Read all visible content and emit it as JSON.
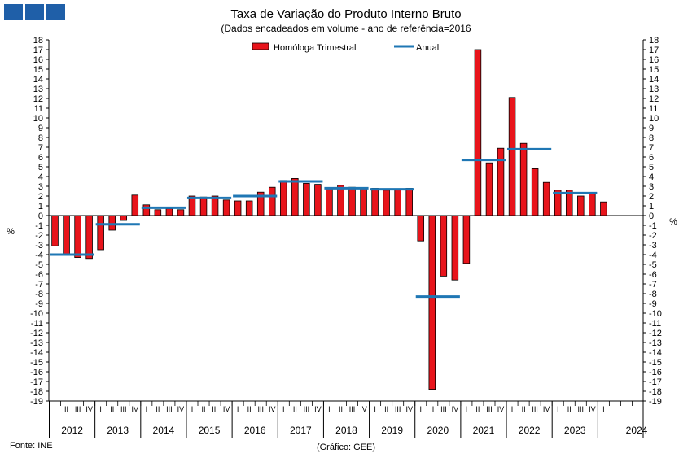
{
  "header": {
    "title": "Taxa de Variação do Produto Interno Bruto",
    "subtitle": "(Dados encadeados em volume  - ano de referência=2016"
  },
  "footer": {
    "source": "Fonte: INE",
    "credit": "(Gráfico: GEE)"
  },
  "colors": {
    "bar_fill": "#e8141b",
    "bar_stroke": "#000000",
    "annual_line": "#1f77b4",
    "logo": "#1f5fa8"
  },
  "chart_data": {
    "type": "bar",
    "ylabel_left": "%",
    "ylabel_right": "%",
    "ylim": [
      -19,
      18
    ],
    "y_ticks": [
      18,
      17,
      16,
      15,
      14,
      13,
      12,
      11,
      10,
      9,
      8,
      7,
      6,
      5,
      4,
      3,
      2,
      1,
      0,
      -1,
      -2,
      -3,
      -4,
      -5,
      -6,
      -7,
      -8,
      -9,
      -10,
      -11,
      -12,
      -13,
      -14,
      -15,
      -16,
      -17,
      -18,
      -19
    ],
    "legend_placement": "top-center",
    "quarter_labels": [
      "I",
      "II",
      "III",
      "IV"
    ],
    "years": [
      "2012",
      "2013",
      "2014",
      "2015",
      "2016",
      "2017",
      "2018",
      "2019",
      "2020",
      "2021",
      "2022",
      "2023",
      "2024"
    ],
    "series": [
      {
        "name": "Homóloga Trimestral",
        "kind": "bar",
        "values": [
          -3.1,
          -4.0,
          -4.3,
          -4.4,
          -3.5,
          -1.5,
          -0.5,
          2.1,
          1.1,
          0.6,
          0.7,
          0.6,
          2.0,
          1.9,
          2.0,
          1.6,
          1.5,
          1.5,
          2.4,
          2.9,
          3.6,
          3.8,
          3.3,
          3.2,
          2.8,
          3.1,
          2.9,
          2.8,
          2.8,
          2.6,
          2.7,
          2.8,
          -2.6,
          -17.8,
          -6.2,
          -6.6,
          -4.9,
          17.0,
          5.4,
          6.9,
          12.1,
          7.4,
          4.8,
          3.4,
          2.6,
          2.6,
          2.0,
          2.2,
          1.4
        ]
      },
      {
        "name": "Anual",
        "kind": "line",
        "values": [
          -4.0,
          -0.9,
          0.8,
          1.8,
          2.0,
          3.5,
          2.8,
          2.7,
          -8.3,
          5.7,
          6.8,
          2.3
        ]
      }
    ]
  }
}
